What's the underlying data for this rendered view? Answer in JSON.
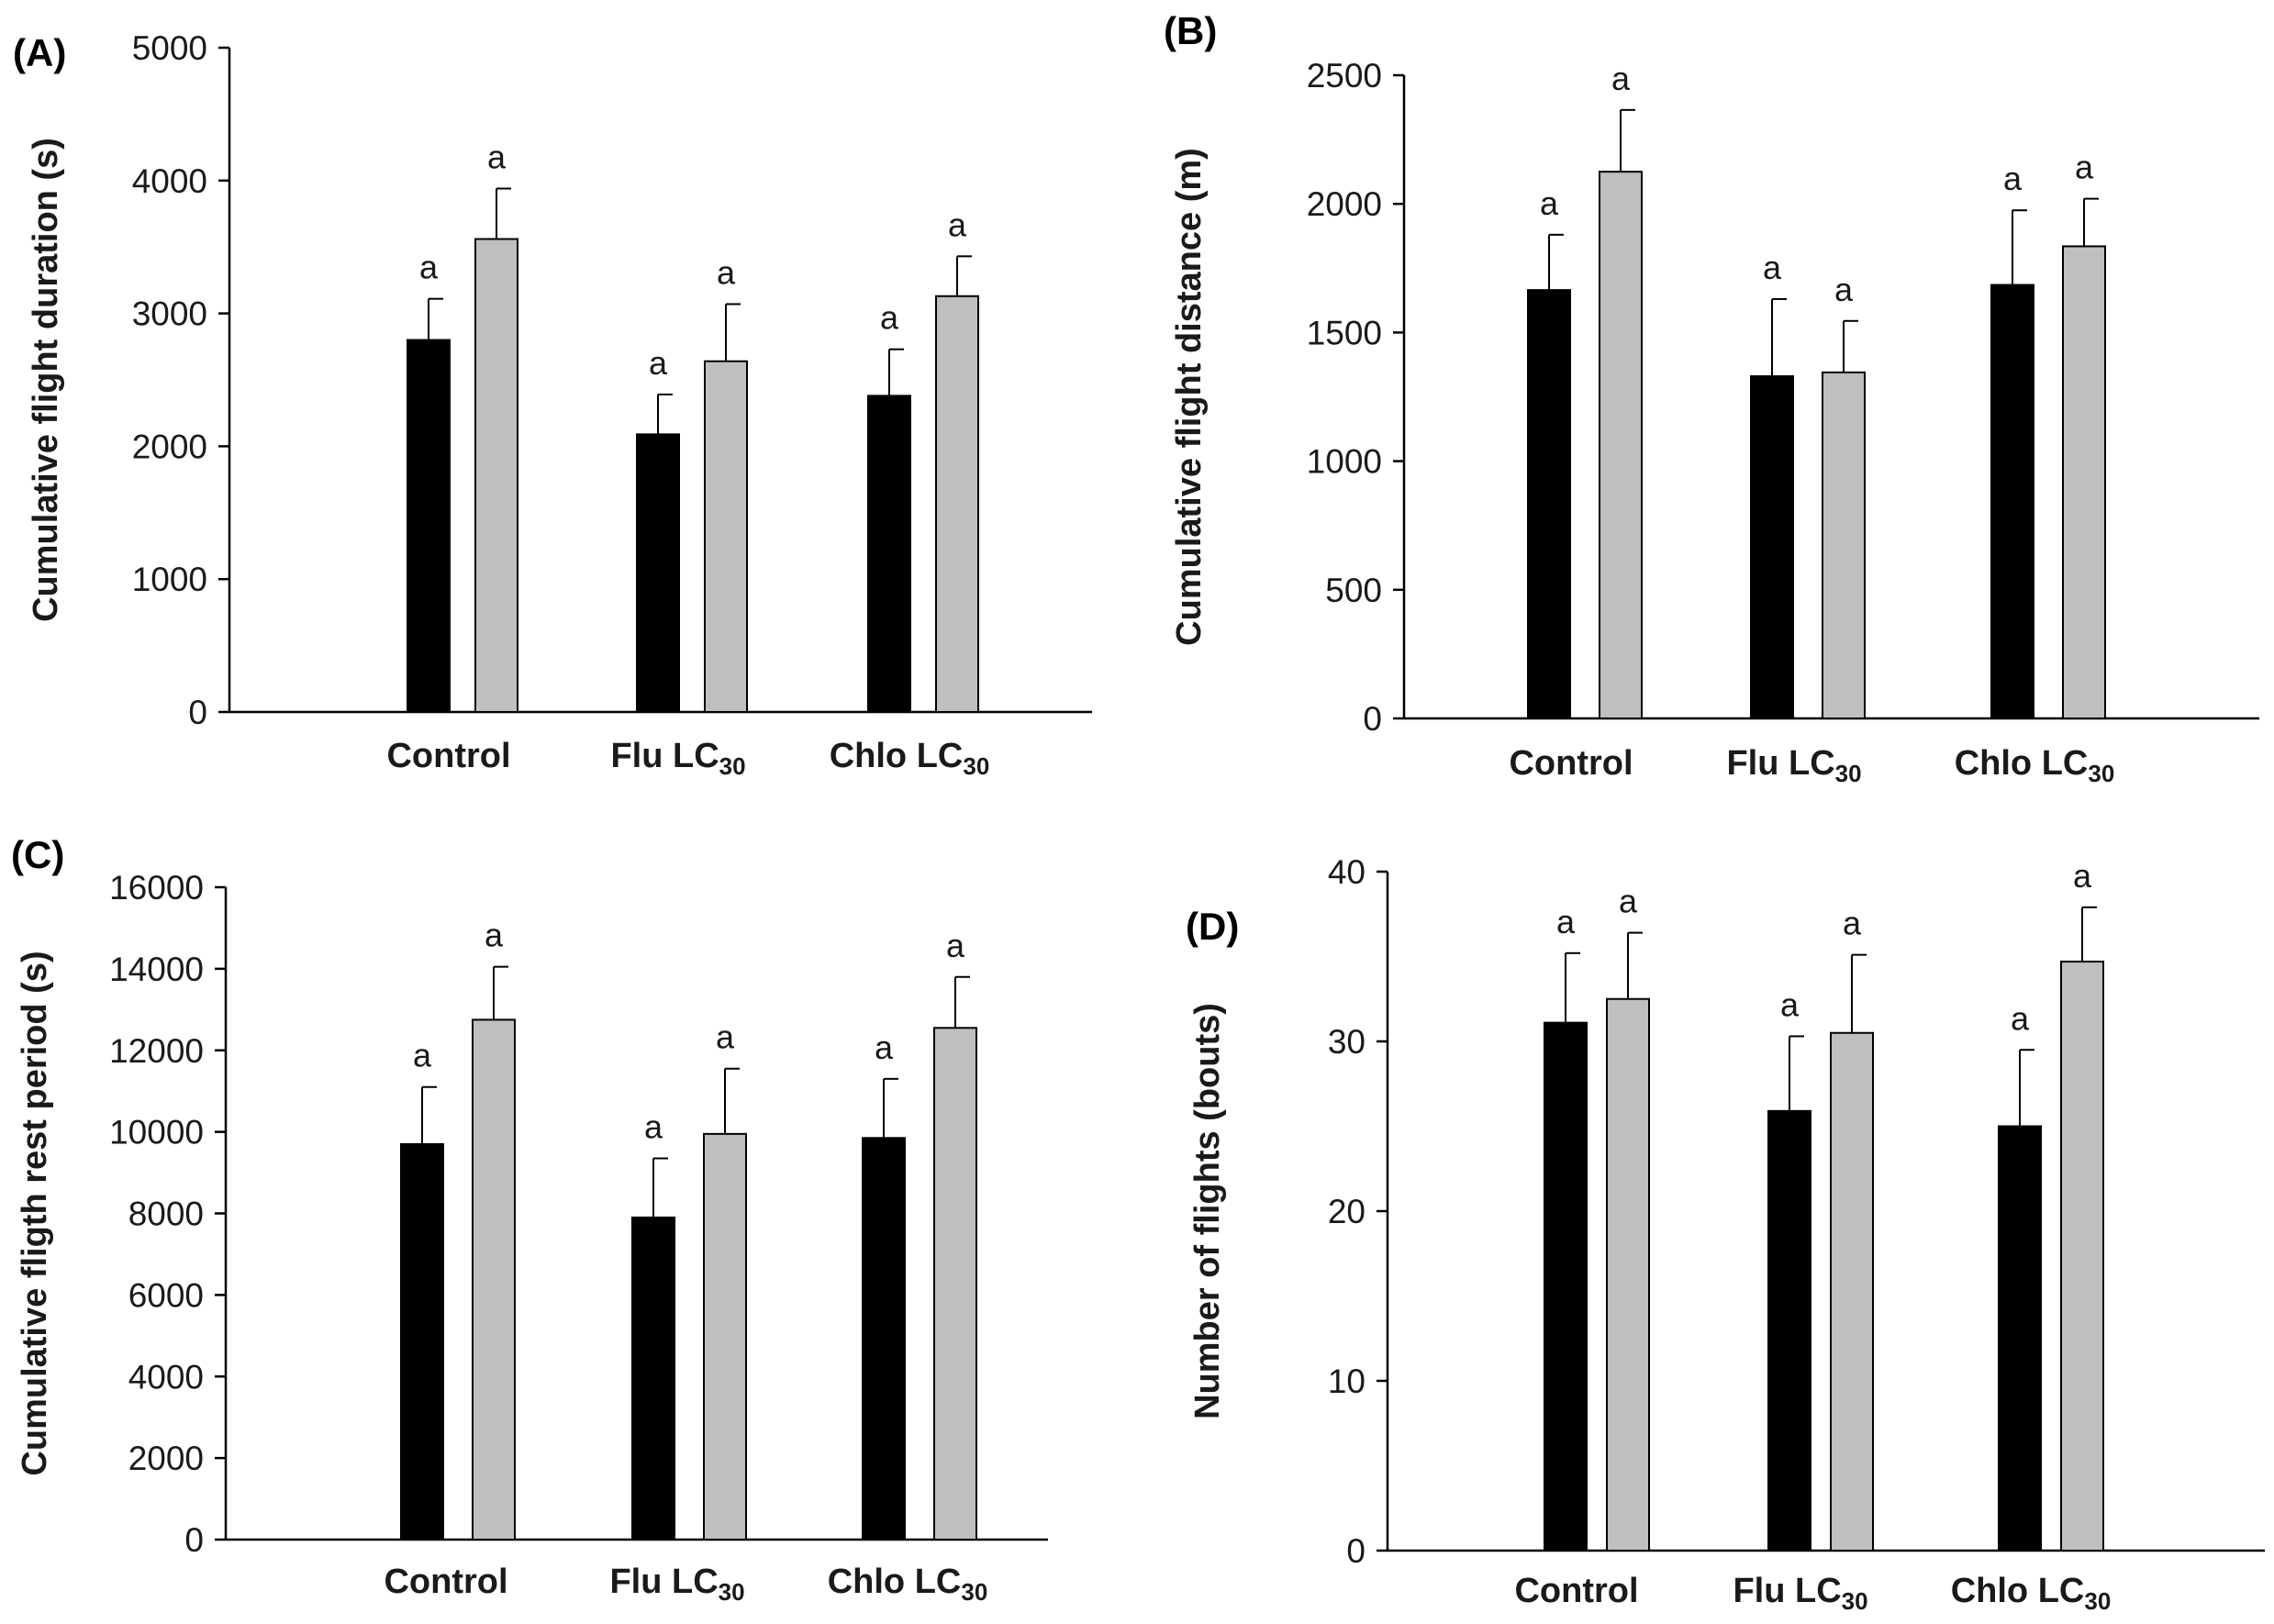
{
  "chart_data": [
    {
      "panel_label": "(A)",
      "type": "bar",
      "categories": [
        "Control",
        "Flu LC30",
        "Chlo LC30"
      ],
      "category_labels": [
        {
          "main": "Control",
          "sub": ""
        },
        {
          "main": "Flu LC",
          "sub": "30"
        },
        {
          "main": "Chlo LC",
          "sub": "30"
        }
      ],
      "ylabel": "Cumulative flight duration (s)",
      "xlabel": "",
      "ylim": [
        0,
        5000
      ],
      "yticks": [
        0,
        1000,
        2000,
        3000,
        4000,
        5000
      ],
      "series": [
        {
          "name": "dark",
          "color": "#000000",
          "values": [
            2800,
            2090,
            2380
          ],
          "errors": [
            310,
            300,
            350
          ],
          "letters": [
            "a",
            "a",
            "a"
          ]
        },
        {
          "name": "light",
          "color": "#bfbfbf",
          "values": [
            3560,
            2640,
            3130
          ],
          "errors": [
            380,
            430,
            300
          ],
          "letters": [
            "a",
            "a",
            "a"
          ]
        }
      ]
    },
    {
      "panel_label": "(B)",
      "type": "bar",
      "categories": [
        "Control",
        "Flu LC30",
        "Chlo LC30"
      ],
      "category_labels": [
        {
          "main": "Control",
          "sub": ""
        },
        {
          "main": "Flu LC",
          "sub": "30"
        },
        {
          "main": "Chlo LC",
          "sub": "30"
        }
      ],
      "ylabel": "Cumulative flight distance (m)",
      "xlabel": "",
      "ylim": [
        0,
        2500
      ],
      "yticks": [
        0,
        500,
        1000,
        1500,
        2000,
        2500
      ],
      "series": [
        {
          "name": "dark",
          "color": "#000000",
          "values": [
            1665,
            1330,
            1685
          ],
          "errors": [
            215,
            300,
            290
          ],
          "letters": [
            "a",
            "a",
            "a"
          ]
        },
        {
          "name": "light",
          "color": "#bfbfbf",
          "values": [
            2125,
            1345,
            1835
          ],
          "errors": [
            240,
            200,
            185
          ],
          "letters": [
            "a",
            "a",
            "a"
          ]
        }
      ]
    },
    {
      "panel_label": "(C)",
      "type": "bar",
      "categories": [
        "Control",
        "Flu LC30",
        "Chlo LC30"
      ],
      "category_labels": [
        {
          "main": "Control",
          "sub": ""
        },
        {
          "main": "Flu LC",
          "sub": "30"
        },
        {
          "main": "Chlo LC",
          "sub": "30"
        }
      ],
      "ylabel": "Cumulative fligth rest period (s)",
      "xlabel": "",
      "ylim": [
        0,
        16000
      ],
      "yticks": [
        0,
        2000,
        4000,
        6000,
        8000,
        10000,
        12000,
        14000,
        16000
      ],
      "series": [
        {
          "name": "dark",
          "color": "#000000",
          "values": [
            9700,
            7900,
            9850
          ],
          "errors": [
            1400,
            1450,
            1450
          ],
          "letters": [
            "a",
            "a",
            "a"
          ]
        },
        {
          "name": "light",
          "color": "#bfbfbf",
          "values": [
            12750,
            9950,
            12550
          ],
          "errors": [
            1300,
            1600,
            1250
          ],
          "letters": [
            "a",
            "a",
            "a"
          ]
        }
      ]
    },
    {
      "panel_label": "(D)",
      "type": "bar",
      "categories": [
        "Control",
        "Flu LC30",
        "Chlo LC30"
      ],
      "category_labels": [
        {
          "main": "Control",
          "sub": ""
        },
        {
          "main": "Flu LC",
          "sub": "30"
        },
        {
          "main": "Chlo LC",
          "sub": "30"
        }
      ],
      "ylabel": "Number of flights (bouts)",
      "xlabel": "",
      "ylim": [
        0,
        40
      ],
      "yticks": [
        0,
        10,
        20,
        30,
        40
      ],
      "series": [
        {
          "name": "dark",
          "color": "#000000",
          "values": [
            31.1,
            25.9,
            25.0
          ],
          "errors": [
            4.1,
            4.4,
            4.5
          ],
          "letters": [
            "a",
            "a",
            "a"
          ]
        },
        {
          "name": "light",
          "color": "#bfbfbf",
          "values": [
            32.5,
            30.5,
            34.7
          ],
          "errors": [
            3.9,
            4.6,
            3.2
          ],
          "letters": [
            "a",
            "a",
            "a"
          ]
        }
      ]
    }
  ]
}
